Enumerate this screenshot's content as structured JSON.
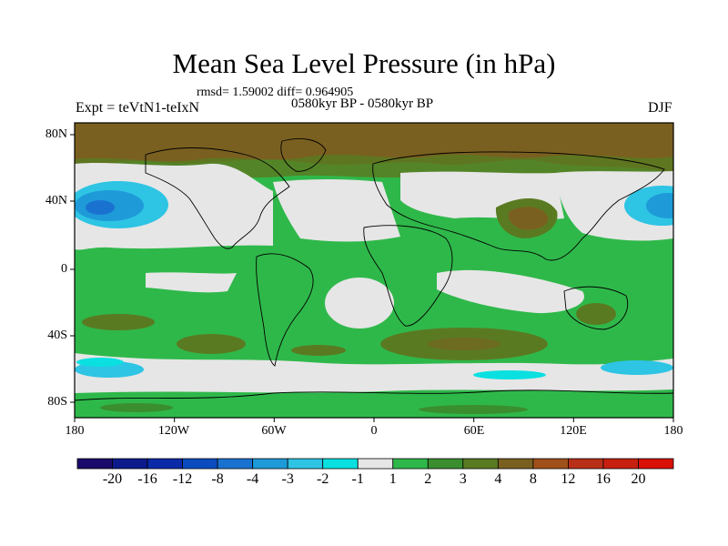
{
  "title": "Mean Sea Level Pressure (in hPa)",
  "stats_line": "rmsd= 1.59002  diff= 0.964905",
  "period": "0580kyr BP - 0580kyr BP",
  "experiment": "Expt = teVtN1-teIxN",
  "season": "DJF",
  "y_axis_labels": [
    "80N",
    "40N",
    "0",
    "40S",
    "80S"
  ],
  "x_axis_labels": [
    "180",
    "120W",
    "60W",
    "0",
    "60E",
    "120E",
    "180"
  ],
  "colorbar": {
    "labels": [
      "-20",
      "-16",
      "-12",
      "-8",
      "-4",
      "-3",
      "-2",
      "-1",
      "1",
      "2",
      "3",
      "4",
      "8",
      "12",
      "16",
      "20"
    ],
    "colors": [
      "#1a0a6b",
      "#0d1a8c",
      "#0a2aa8",
      "#0a4cc0",
      "#1a72d0",
      "#1e9ad8",
      "#2ec4e4",
      "#0ae0e0",
      "#e6e6e6",
      "#2fb84a",
      "#3a8e2e",
      "#5a7a22",
      "#7a6020",
      "#a0501a",
      "#b83018",
      "#c82010",
      "#d81008"
    ]
  },
  "map": {
    "land_color": "#e6e6e6",
    "ocean_palette": {
      "weak": "#e6e6e6",
      "green": "#2fb84a",
      "darkgreen": "#3a8e2e",
      "olive": "#5a7a22",
      "brown": "#7a6020",
      "cyan": "#2ec4e4",
      "aqua": "#0ae0e0",
      "blue": "#1e9ad8",
      "deepblue": "#1a72d0"
    }
  }
}
